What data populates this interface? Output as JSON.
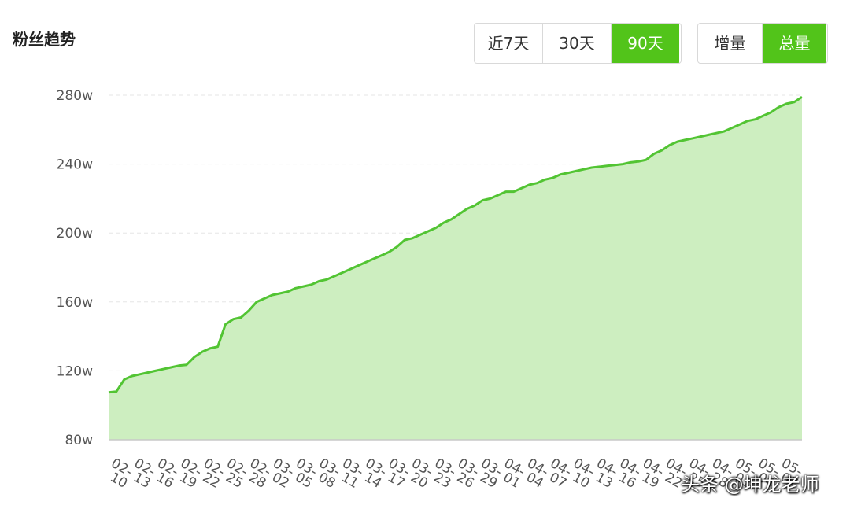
{
  "page": {
    "title": "粉丝趋势"
  },
  "range_tabs": [
    {
      "label": "近7天",
      "active": false
    },
    {
      "label": "30天",
      "active": false
    },
    {
      "label": "90天",
      "active": true
    }
  ],
  "mode_tabs": [
    {
      "label": "增量",
      "active": false
    },
    {
      "label": "总量",
      "active": true
    }
  ],
  "colors": {
    "accent": "#52c41a",
    "line": "#52c433",
    "area_fill": "#cdeec0",
    "grid": "#e6e6e6",
    "axis_text": "#555555"
  },
  "watermark": "头条 @坤龙老师",
  "chart_data": {
    "type": "area",
    "title": "粉丝趋势",
    "xlabel": "",
    "ylabel": "",
    "ylim": [
      80,
      280
    ],
    "yticks": [
      "80w",
      "120w",
      "160w",
      "200w",
      "240w",
      "280w"
    ],
    "grid": true,
    "x_tick_labels": [
      "02-10",
      "02-13",
      "02-16",
      "02-19",
      "02-22",
      "02-25",
      "02-28",
      "03-02",
      "03-05",
      "03-08",
      "03-11",
      "03-14",
      "03-17",
      "03-20",
      "03-23",
      "03-26",
      "03-29",
      "04-01",
      "04-04",
      "04-07",
      "04-10",
      "04-13",
      "04-16",
      "04-19",
      "04-22",
      "04-25",
      "04-28",
      "05-01",
      "05-04",
      "05-07"
    ],
    "series": [
      {
        "values": [
          107.5,
          108,
          115,
          117,
          118,
          119,
          120,
          121,
          122,
          123,
          123.5,
          128,
          131,
          133,
          134,
          147,
          150,
          151,
          155,
          160,
          162,
          164,
          165,
          166,
          168,
          169,
          170,
          172,
          173,
          175,
          177,
          179,
          181,
          183,
          185,
          187,
          189,
          192,
          196,
          197,
          199,
          201,
          203,
          206,
          208,
          211,
          214,
          216,
          219,
          220,
          222,
          224,
          224,
          226,
          228,
          229,
          231,
          232,
          234,
          235,
          236,
          237,
          238,
          238.5,
          239,
          239.5,
          240,
          241,
          241.5,
          242.5,
          246,
          248,
          251,
          253,
          254,
          255,
          256,
          257,
          258,
          259,
          261,
          263,
          265,
          266,
          268,
          270,
          273,
          275,
          276,
          279
        ]
      }
    ]
  }
}
